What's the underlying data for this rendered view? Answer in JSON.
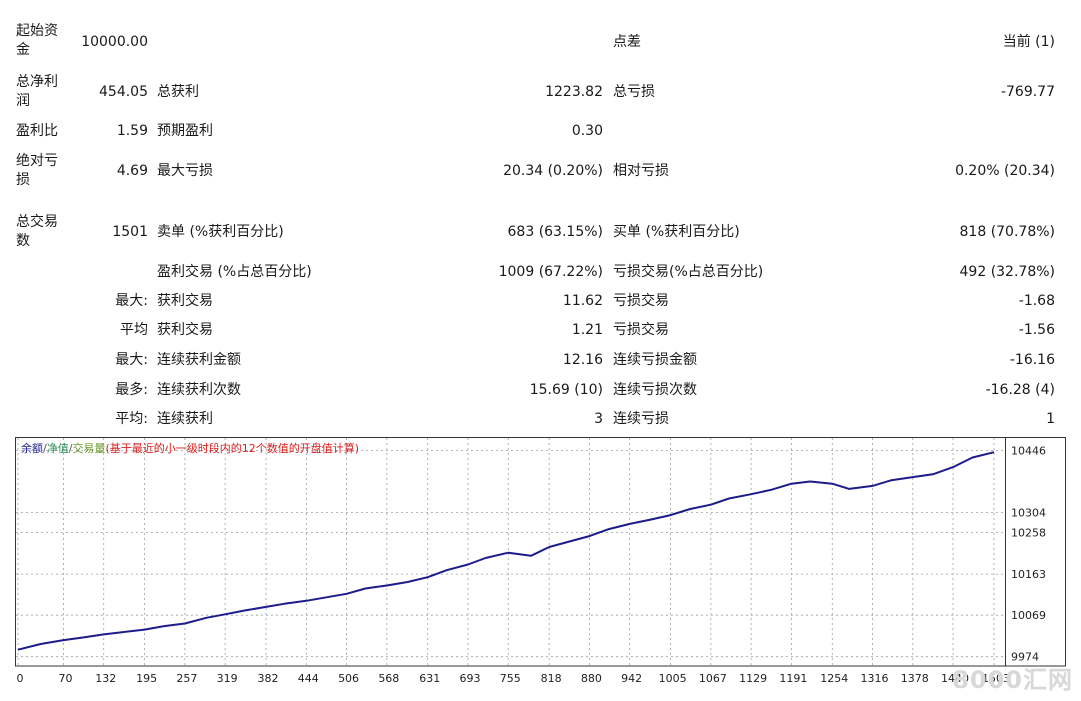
{
  "report": {
    "initial_deposit": {
      "label": "起始资金",
      "value": "10000.00"
    },
    "spread": {
      "label": "点差",
      "value": "当前 (1)"
    },
    "total_net_profit": {
      "label": "总净利润",
      "value": "454.05"
    },
    "gross_profit": {
      "label": "总获利",
      "value": "1223.82"
    },
    "gross_loss": {
      "label": "总亏损",
      "value": "-769.77"
    },
    "profit_factor": {
      "label": "盈利比",
      "value": "1.59"
    },
    "expected_payoff": {
      "label": "预期盈利",
      "value": "0.30"
    },
    "absolute_drawdown": {
      "label": "绝对亏损",
      "value": "4.69"
    },
    "maximal_drawdown": {
      "label": "最大亏损",
      "value": "20.34 (0.20%)"
    },
    "relative_drawdown": {
      "label": "相对亏损",
      "value": "0.20% (20.34)"
    },
    "total_trades": {
      "label": "总交易数",
      "value": "1501"
    },
    "short_positions": {
      "label": "卖单 (%获利百分比)",
      "value": "683 (63.15%)"
    },
    "long_positions": {
      "label": "买单 (%获利百分比)",
      "value": "818 (70.78%)"
    },
    "profit_trades": {
      "label": "盈利交易 (%占总百分比)",
      "value": "1009 (67.22%)"
    },
    "loss_trades": {
      "label": "亏损交易(%占总百分比)",
      "value": "492 (32.78%)"
    },
    "largest": {
      "prefix": "最大:",
      "profit_label": "获利交易",
      "profit_value": "11.62",
      "loss_label": "亏损交易",
      "loss_value": "-1.68"
    },
    "average": {
      "prefix": "平均",
      "profit_label": "获利交易",
      "profit_value": "1.21",
      "loss_label": "亏损交易",
      "loss_value": "-1.56"
    },
    "max_consecutive_amount": {
      "prefix": "最大:",
      "profit_label": "连续获利金额",
      "profit_value": "12.16",
      "loss_label": "连续亏损金额",
      "loss_value": "-16.16"
    },
    "max_consecutive_count": {
      "prefix": "最多:",
      "profit_label": "连续获利次数",
      "profit_value": "15.69 (10)",
      "loss_label": "连续亏损次数",
      "loss_value": "-16.28 (4)"
    },
    "average_consecutive": {
      "prefix": "平均:",
      "profit_label": "连续获利",
      "profit_value": "3",
      "loss_label": "连续亏损",
      "loss_value": "1"
    }
  },
  "chart_data": {
    "type": "line",
    "legend": [
      {
        "text": "余额",
        "color": "#1c1c8c"
      },
      {
        "text": "/",
        "color": "#555555"
      },
      {
        "text": "净值",
        "color": "#2e8b57"
      },
      {
        "text": "/",
        "color": "#555555"
      },
      {
        "text": "交易量",
        "color": "#6a9a2a"
      },
      {
        "text": "(基于最近的小一级时段内的12个数值的开盘值计算)",
        "color": "#d62020"
      }
    ],
    "x_ticks": [
      0,
      70,
      132,
      195,
      257,
      319,
      382,
      444,
      506,
      568,
      631,
      693,
      755,
      818,
      880,
      942,
      1005,
      1067,
      1129,
      1191,
      1254,
      1316,
      1378,
      1440,
      1503
    ],
    "xlim": [
      0,
      1520
    ],
    "y_ticks": [
      9974,
      10069,
      10163,
      10258,
      10304,
      10446
    ],
    "ylim": [
      9955,
      10470
    ],
    "grid": true,
    "series": [
      {
        "color": "#1c1c8c",
        "x": [
          0,
          35,
          70,
          100,
          132,
          160,
          195,
          225,
          257,
          290,
          319,
          350,
          382,
          410,
          444,
          475,
          506,
          535,
          568,
          600,
          631,
          660,
          693,
          720,
          755,
          790,
          818,
          850,
          880,
          910,
          942,
          975,
          1005,
          1035,
          1067,
          1095,
          1129,
          1160,
          1191,
          1220,
          1254,
          1280,
          1316,
          1345,
          1378,
          1410,
          1440,
          1470,
          1503
        ],
        "y": [
          9990,
          10003,
          10012,
          10018,
          10025,
          10030,
          10036,
          10044,
          10050,
          10063,
          10071,
          10080,
          10088,
          10095,
          10102,
          10110,
          10118,
          10130,
          10137,
          10145,
          10156,
          10172,
          10185,
          10200,
          10212,
          10205,
          10225,
          10238,
          10250,
          10266,
          10278,
          10288,
          10298,
          10312,
          10322,
          10336,
          10346,
          10356,
          10370,
          10375,
          10370,
          10358,
          10365,
          10378,
          10385,
          10392,
          10408,
          10430,
          10442
        ]
      }
    ]
  },
  "watermark": "8000汇网"
}
